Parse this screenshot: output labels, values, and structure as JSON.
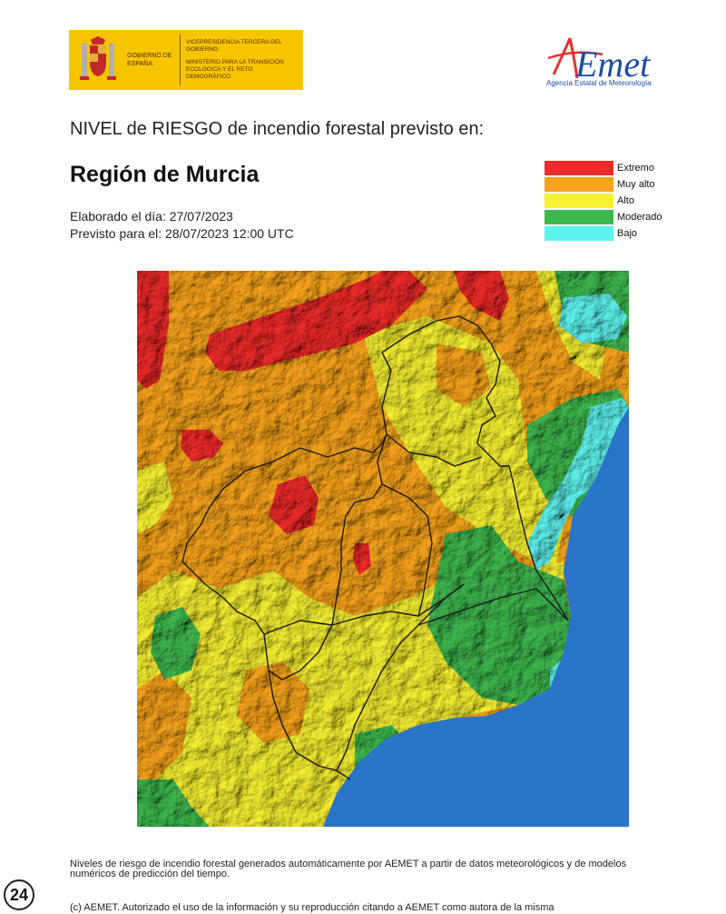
{
  "header": {
    "gov_left": "GOBIERNO DE ESPAÑA",
    "gov_vp": "VICEPRESIDENCIA TERCERA DEL GOBIERNO",
    "gov_ministry": "MINISTERIO PARA LA TRANSICIÓN ECOLÓGICA Y EL RETO DEMOGRÁFICO",
    "aemet_wordmark": "AEmet",
    "aemet_subtitle": "Agencia Estatal de Meteorología",
    "gov_color": "#f6c500",
    "aemet_color": "#1c4fa0"
  },
  "title": {
    "heading": "NIVEL de RIESGO de incendio forestal previsto en:",
    "region": "Región de Murcia",
    "elaborated": "Elaborado el día: 27/07/2023",
    "forecast": "Previsto para el: 28/07/2023 12:00 UTC"
  },
  "legend": {
    "items": [
      {
        "label": "Extremo",
        "color": "#ee2b2b"
      },
      {
        "label": "Muy alto",
        "color": "#f7a41c"
      },
      {
        "label": "Alto",
        "color": "#f6f132"
      },
      {
        "label": "Moderado",
        "color": "#3fb74f"
      },
      {
        "label": "Bajo",
        "color": "#5ff3ee"
      }
    ]
  },
  "map": {
    "sea_color": "#2a74c8"
  },
  "footer": {
    "note": "Niveles de riesgo de incendio forestal generados automáticamente por AEMET a partir de datos meteorológicos y de modelos numéricos de predicción del tiempo.",
    "copyright": "(c) AEMET. Autorizado el uso de la información y su reproducción citando a AEMET como autora de la misma",
    "badge": "24"
  }
}
